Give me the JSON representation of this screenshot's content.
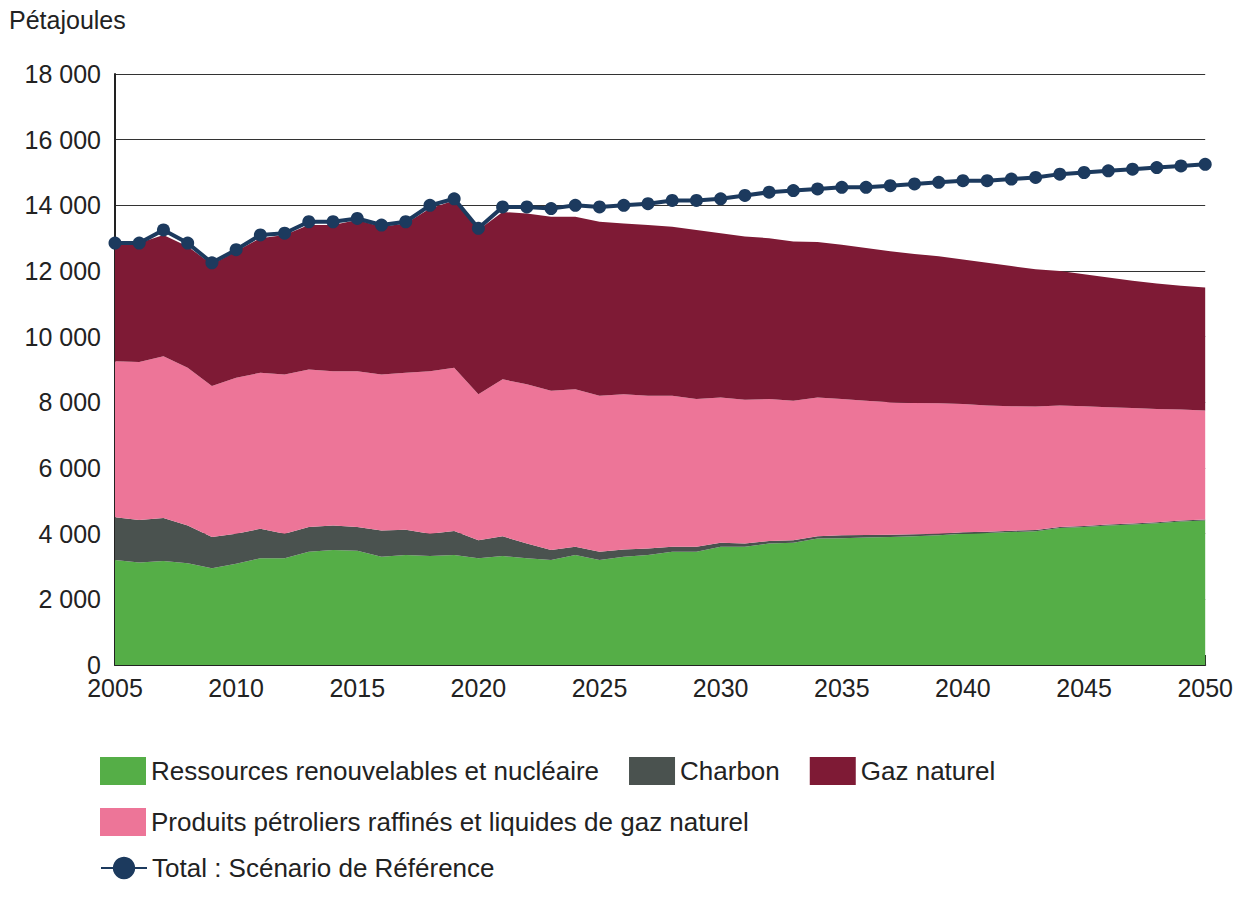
{
  "chart_data": {
    "type": "stacked_area",
    "y_label": "Pétajoules",
    "categories": [
      2005,
      null,
      null,
      null,
      null,
      2010,
      null,
      null,
      null,
      null,
      2015,
      null,
      null,
      null,
      null,
      2020,
      null,
      null,
      null,
      null,
      2025,
      null,
      null,
      null,
      null,
      2030,
      null,
      null,
      null,
      null,
      2035,
      null,
      null,
      null,
      null,
      2040,
      null,
      null,
      null,
      null,
      2045,
      null,
      null,
      null,
      null,
      2050
    ],
    "stacked": true,
    "grid": true,
    "legend": "bottom",
    "ylim": [
      0,
      18000
    ],
    "yticks": [
      0,
      {
        "value": 2000,
        "label": "2 000"
      },
      {
        "value": 4000,
        "label": "4 000"
      },
      {
        "value": 6000,
        "label": "6 000"
      },
      {
        "value": 8000,
        "label": "8 000"
      },
      {
        "value": 10000,
        "label": "10 000"
      },
      {
        "value": 12000,
        "label": "12 000"
      },
      {
        "value": 14000,
        "label": "14 000"
      },
      {
        "value": 16000,
        "label": "16 000"
      },
      {
        "value": 18000,
        "label": "18 000"
      }
    ],
    "series": [
      {
        "name": "Ressources renouvelables et nucléaire",
        "type": "area",
        "color": "#55ae47",
        "values": [
          3200,
          3120,
          3170,
          3100,
          2950,
          3080,
          3250,
          3250,
          3450,
          3500,
          3480,
          3300,
          3350,
          3320,
          3350,
          3250,
          3320,
          3250,
          3200,
          3350,
          3200,
          3300,
          3350,
          3450,
          3450,
          3600,
          3600,
          3700,
          3720,
          3850,
          3860,
          3880,
          3900,
          3920,
          3950,
          4000,
          4020,
          4050,
          4070,
          4170,
          4200,
          4250,
          4280,
          4320,
          4370,
          4400
        ]
      },
      {
        "name": "Charbon",
        "type": "area",
        "color": "#4a524f",
        "values": [
          1300,
          1300,
          1310,
          1150,
          950,
          920,
          900,
          750,
          750,
          750,
          720,
          800,
          770,
          680,
          730,
          550,
          600,
          450,
          300,
          250,
          250,
          220,
          200,
          150,
          150,
          120,
          100,
          80,
          80,
          70,
          90,
          80,
          70,
          60,
          50,
          40,
          40,
          40,
          40,
          30,
          30,
          30,
          30,
          30,
          30,
          30
        ]
      },
      {
        "name": "Produits pétroliers raffinés et liquides de gaz naturel",
        "type": "area",
        "color": "#ed7598",
        "values": [
          4750,
          4810,
          4920,
          4800,
          4600,
          4750,
          4750,
          4850,
          4800,
          4700,
          4750,
          4750,
          4780,
          4950,
          4970,
          4450,
          4780,
          4850,
          4850,
          4800,
          4750,
          4730,
          4650,
          4600,
          4500,
          4430,
          4380,
          4320,
          4250,
          4230,
          4150,
          4090,
          4030,
          4000,
          3970,
          3910,
          3840,
          3790,
          3760,
          3700,
          3650,
          3570,
          3520,
          3450,
          3380,
          3320
        ]
      },
      {
        "name": "Gaz naturel",
        "type": "area",
        "color": "#7e1a35",
        "values": [
          3550,
          3620,
          3700,
          3700,
          3700,
          3850,
          4100,
          4250,
          4400,
          4450,
          4600,
          4500,
          4550,
          4950,
          5100,
          5000,
          5100,
          5200,
          5300,
          5250,
          5300,
          5200,
          5200,
          5150,
          5150,
          5000,
          4970,
          4900,
          4850,
          4730,
          4700,
          4650,
          4600,
          4540,
          4480,
          4400,
          4350,
          4270,
          4180,
          4100,
          4020,
          3950,
          3870,
          3820,
          3770,
          3750
        ]
      },
      {
        "name": "Total : Scénario de Référence",
        "type": "line",
        "color": "#1c3a5e",
        "marker": "circle",
        "values": [
          12850,
          12850,
          13250,
          12850,
          12250,
          12650,
          13100,
          13150,
          13500,
          13500,
          13600,
          13400,
          13500,
          14000,
          14200,
          13300,
          13950,
          13950,
          13900,
          14000,
          13950,
          14000,
          14050,
          14150,
          14150,
          14200,
          14300,
          14400,
          14450,
          14500,
          14550,
          14550,
          14600,
          14650,
          14700,
          14750,
          14750,
          14800,
          14850,
          14950,
          15000,
          15050,
          15100,
          15150,
          15200,
          15250
        ]
      }
    ]
  }
}
